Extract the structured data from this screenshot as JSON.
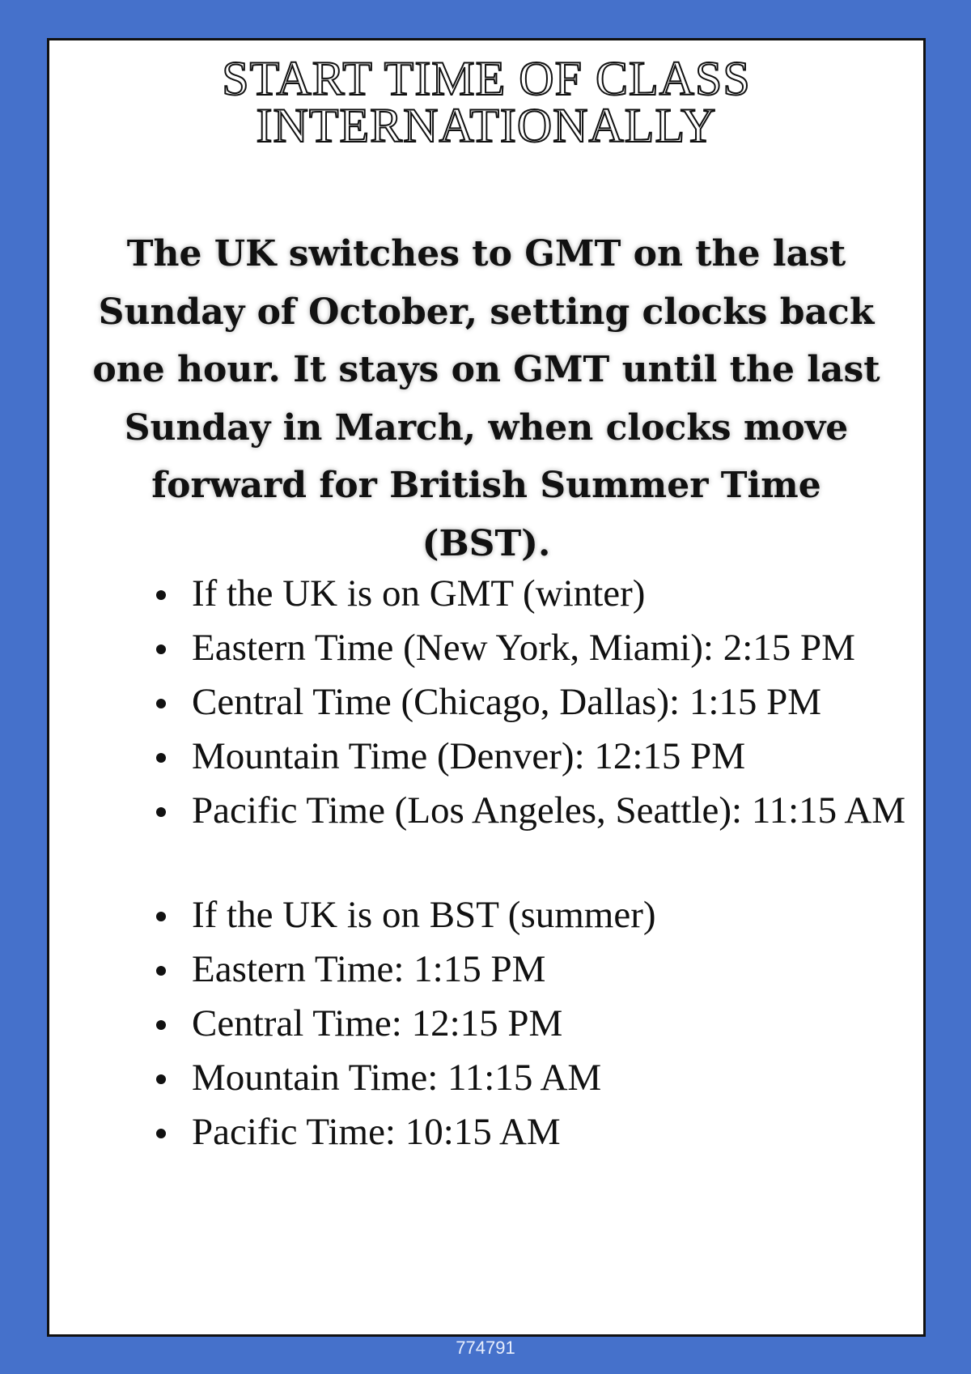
{
  "title": {
    "line1": "START TIME OF CLASS",
    "line2": "INTERNATIONALLY"
  },
  "intro": "The UK switches to GMT on the last Sunday of October, setting clocks back one hour. It stays on GMT until the last Sunday in March, when clocks move forward for British Summer Time (BST).",
  "winter_list": [
    "If the UK is on GMT (winter)",
    "Eastern Time (New York, Miami): 2:15 PM",
    "Central Time (Chicago, Dallas): 1:15 PM",
    "Mountain Time (Denver): 12:15 PM",
    "Pacific Time (Los Angeles, Seattle): 11:15 AM"
  ],
  "summer_list": [
    "If the UK is on BST (summer)",
    "Eastern Time: 1:15 PM",
    "Central Time: 12:15 PM",
    "Mountain Time: 11:15 AM",
    "Pacific Time: 10:15 AM"
  ],
  "footer": "774791",
  "colors": {
    "background": "#4571cb",
    "card": "#ffffff",
    "border": "#111111"
  }
}
